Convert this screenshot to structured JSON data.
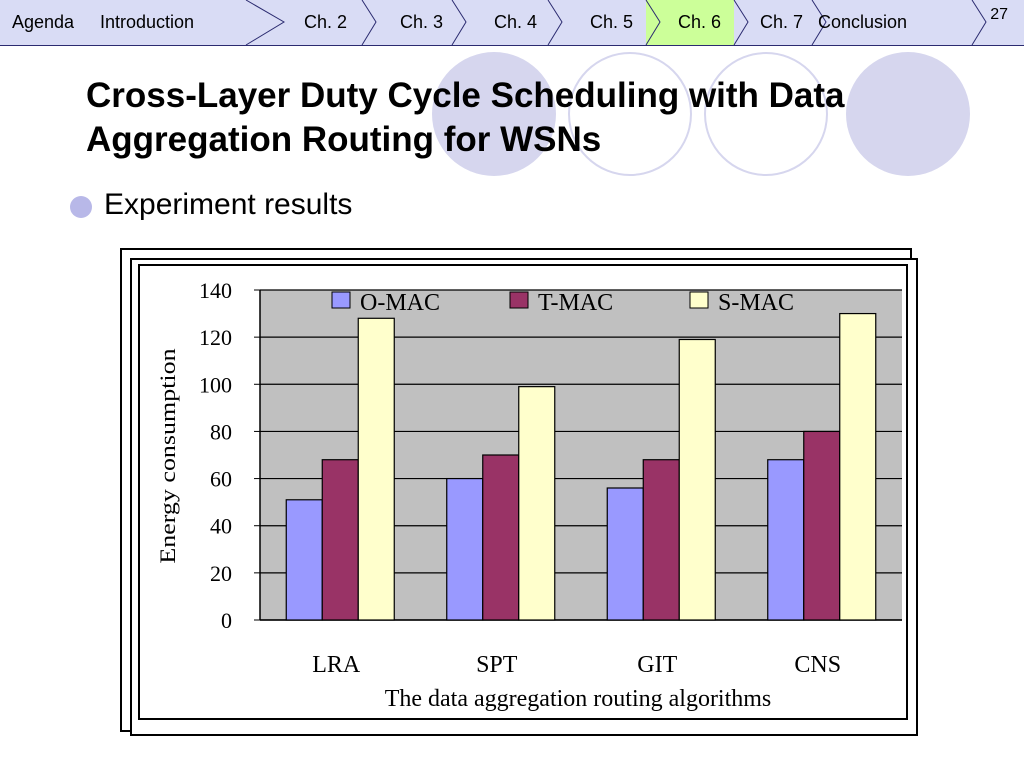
{
  "nav": {
    "items": [
      {
        "label": "Agenda"
      },
      {
        "label": "Introduction"
      },
      {
        "label": "Ch. 2"
      },
      {
        "label": "Ch. 3"
      },
      {
        "label": "Ch. 4"
      },
      {
        "label": "Ch. 5"
      },
      {
        "label": "Ch. 6"
      },
      {
        "label": "Ch. 7"
      },
      {
        "label": "Conclusion"
      }
    ],
    "active": "Ch. 6",
    "active_color": "#ccff99",
    "page_number": "27"
  },
  "slide": {
    "title_line1": "Cross-Layer Duty Cycle Scheduling with Data",
    "title_line2": "Aggregation Routing for WSNs",
    "bullet": "Experiment results"
  },
  "chart_data": {
    "type": "bar",
    "categories": [
      "LRA",
      "SPT",
      "GIT",
      "CNS"
    ],
    "series": [
      {
        "name": "O-MAC",
        "values": [
          51,
          60,
          56,
          68
        ],
        "color": "#9999ff"
      },
      {
        "name": "T-MAC",
        "values": [
          68,
          70,
          68,
          80
        ],
        "color": "#993366"
      },
      {
        "name": "S-MAC",
        "values": [
          128,
          99,
          119,
          130
        ],
        "color": "#ffffcc"
      }
    ],
    "ylim": [
      0,
      140
    ],
    "yticks": [
      "0",
      "20",
      "40",
      "60",
      "80",
      "100",
      "120",
      "140"
    ],
    "ylabel": "Energy consumption",
    "xlabel": "The data aggregation routing algorithms",
    "grid": true,
    "plot_background": "#c0c0c0",
    "legend": "top"
  }
}
